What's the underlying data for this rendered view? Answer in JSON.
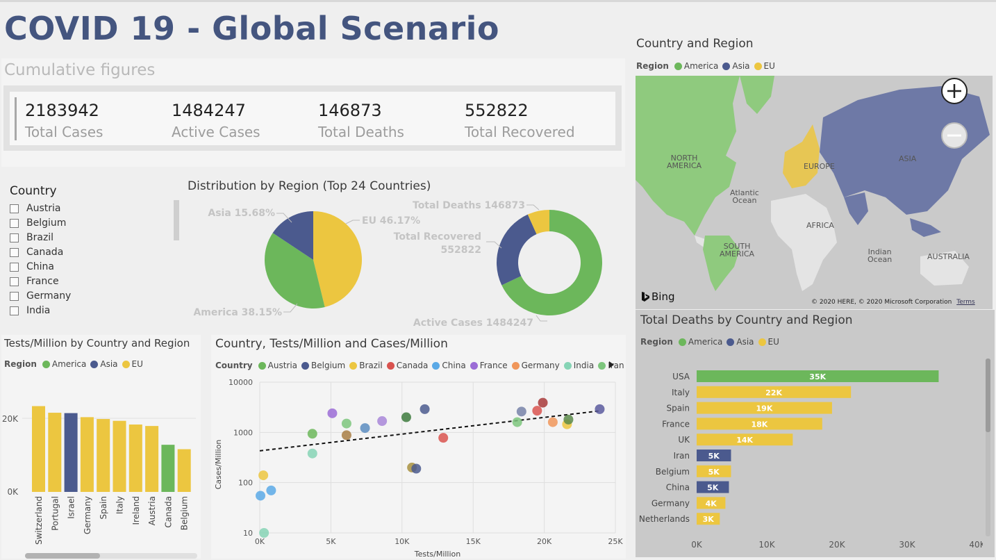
{
  "title": "COVID 19 - Global Scenario",
  "cumulative": {
    "title": "Cumulative figures",
    "kpis": [
      {
        "value": "2183942",
        "label": "Total Cases"
      },
      {
        "value": "1484247",
        "label": "Active Cases"
      },
      {
        "value": "146873",
        "label": "Total Deaths"
      },
      {
        "value": "552822",
        "label": "Total Recovered"
      }
    ]
  },
  "colors": {
    "america": "#6cb75b",
    "asia": "#4b5a8e",
    "eu": "#ecc640"
  },
  "slicer": {
    "title": "Country",
    "items": [
      "Austria",
      "Belgium",
      "Brazil",
      "Canada",
      "China",
      "France",
      "Germany",
      "India"
    ]
  },
  "region_pie": {
    "title": "Distribution by Region (Top 24 Countries)",
    "slices": [
      {
        "label": "EU 46.17%",
        "region": "EU",
        "value": 46.17
      },
      {
        "label": "America 38.15%",
        "region": "America",
        "value": 38.15
      },
      {
        "label": "Asia 15.68%",
        "region": "Asia",
        "value": 15.68
      }
    ]
  },
  "cases_donut": {
    "slices": [
      {
        "label": "Active Cases 1484247",
        "value": 1484247
      },
      {
        "label_l1": "Total Recovered",
        "label_l2": "552822",
        "value": 552822
      },
      {
        "label": "Total Deaths 146873",
        "value": 146873
      }
    ]
  },
  "map": {
    "title": "Country and Region",
    "legend": {
      "title": "Region",
      "items": [
        "America",
        "Asia",
        "EU"
      ]
    },
    "labels": {
      "north_america_1": "NORTH",
      "north_america_2": "AMERICA",
      "europe": "EUROPE",
      "asia": "ASIA",
      "atlantic_1": "Atlantic",
      "atlantic_2": "Ocean",
      "africa": "AFRICA",
      "south_america_1": "SOUTH",
      "south_america_2": "AMERICA",
      "indian_1": "Indian",
      "indian_2": "Ocean",
      "australia": "AUSTRALIA"
    },
    "bing": "Bing",
    "copyright": "© 2020 HERE, © 2020 Microsoft Corporation",
    "terms": "Terms",
    "zoom_in": "+",
    "zoom_out": "−"
  },
  "deaths_chart": {
    "title": "Total Deaths by Country and Region",
    "legend": {
      "title": "Region",
      "items": [
        "America",
        "Asia",
        "EU"
      ]
    },
    "x_ticks": [
      "0K",
      "10K",
      "20K",
      "30K",
      "40K"
    ],
    "bars": [
      {
        "country": "USA",
        "region": "America",
        "value": 34.5,
        "label": "35K"
      },
      {
        "country": "Italy",
        "region": "EU",
        "value": 22.0,
        "label": "22K"
      },
      {
        "country": "Spain",
        "region": "EU",
        "value": 19.3,
        "label": "19K"
      },
      {
        "country": "France",
        "region": "EU",
        "value": 17.9,
        "label": "18K"
      },
      {
        "country": "UK",
        "region": "EU",
        "value": 13.7,
        "label": "14K"
      },
      {
        "country": "Iran",
        "region": "Asia",
        "value": 4.9,
        "label": "5K"
      },
      {
        "country": "Belgium",
        "region": "EU",
        "value": 4.9,
        "label": "5K"
      },
      {
        "country": "China",
        "region": "Asia",
        "value": 4.6,
        "label": "5K"
      },
      {
        "country": "Germany",
        "region": "EU",
        "value": 4.1,
        "label": "4K"
      },
      {
        "country": "Netherlands",
        "region": "EU",
        "value": 3.3,
        "label": "3K"
      }
    ]
  },
  "tests_chart": {
    "title": "Tests/Million by Country and Region",
    "legend": {
      "title": "Region",
      "items": [
        "America",
        "Asia",
        "EU"
      ]
    },
    "y_ticks": [
      "20K",
      "0K"
    ],
    "bars": [
      {
        "country": "Switzerland",
        "region": "EU",
        "value": 23.3
      },
      {
        "country": "Portugal",
        "region": "EU",
        "value": 21.5
      },
      {
        "country": "Israel",
        "region": "Asia",
        "value": 21.4
      },
      {
        "country": "Germany",
        "region": "EU",
        "value": 20.3
      },
      {
        "country": "Spain",
        "region": "EU",
        "value": 19.8
      },
      {
        "country": "Italy",
        "region": "EU",
        "value": 19.3
      },
      {
        "country": "Ireland",
        "region": "EU",
        "value": 18.3
      },
      {
        "country": "Austria",
        "region": "EU",
        "value": 17.9
      },
      {
        "country": "Canada",
        "region": "America",
        "value": 12.8
      },
      {
        "country": "Belgium",
        "region": "EU",
        "value": 11.6
      }
    ]
  },
  "scatter": {
    "title": "Country, Tests/Million and Cases/Million",
    "legend": {
      "title": "Country",
      "items": [
        {
          "name": "Austria",
          "color": "#6cb75b"
        },
        {
          "name": "Belgium",
          "color": "#4b5a8e"
        },
        {
          "name": "Brazil",
          "color": "#ecc640"
        },
        {
          "name": "Canada",
          "color": "#d9534f"
        },
        {
          "name": "China",
          "color": "#5aa9e6"
        },
        {
          "name": "France",
          "color": "#9b6cd6"
        },
        {
          "name": "Germany",
          "color": "#f0965a"
        },
        {
          "name": "India",
          "color": "#86d4b5"
        },
        {
          "name": "Iran",
          "color": "#7dc67d"
        }
      ]
    },
    "xlabel": "Tests/Million",
    "ylabel": "Cases/Million",
    "x_ticks": [
      "0K",
      "5K",
      "10K",
      "15K",
      "20K",
      "25K"
    ],
    "y_ticks": [
      "10000",
      "1000",
      "100",
      "10"
    ]
  },
  "chart_data": [
    {
      "type": "bar",
      "title": "Total Deaths by Country and Region",
      "orientation": "horizontal",
      "categories": [
        "USA",
        "Italy",
        "Spain",
        "France",
        "UK",
        "Iran",
        "Belgium",
        "China",
        "Germany",
        "Netherlands"
      ],
      "values": [
        34500,
        22000,
        19300,
        17900,
        13700,
        4900,
        4900,
        4600,
        4100,
        3300
      ],
      "data_labels": [
        "35K",
        "22K",
        "19K",
        "18K",
        "14K",
        "5K",
        "5K",
        "5K",
        "4K",
        "3K"
      ],
      "xlim": [
        0,
        40000
      ]
    },
    {
      "type": "bar",
      "title": "Tests/Million by Country and Region",
      "categories": [
        "Switzerland",
        "Portugal",
        "Israel",
        "Germany",
        "Spain",
        "Italy",
        "Ireland",
        "Austria",
        "Canada",
        "Belgium"
      ],
      "values": [
        23300,
        21500,
        21400,
        20300,
        19800,
        19300,
        18300,
        17900,
        12800,
        11600
      ]
    },
    {
      "type": "pie",
      "title": "Distribution by Region (Top 24 Countries)",
      "categories": [
        "EU",
        "America",
        "Asia"
      ],
      "values": [
        46.17,
        38.15,
        15.68
      ]
    },
    {
      "type": "pie",
      "categories": [
        "Active Cases",
        "Total Recovered",
        "Total Deaths"
      ],
      "values": [
        1484247,
        552822,
        146873
      ]
    },
    {
      "type": "scatter",
      "title": "Country, Tests/Million and Cases/Million",
      "xlabel": "Tests/Million",
      "ylabel": "Cases/Million",
      "xlim": [
        0,
        25000
      ],
      "ylim": [
        10,
        10000
      ],
      "y_scale": "log",
      "points": [
        {
          "x": 50,
          "y": 55,
          "color": "#5aa9e6"
        },
        {
          "x": 300,
          "y": 10,
          "color": "#86d4b5"
        },
        {
          "x": 250,
          "y": 140,
          "color": "#ecc640"
        },
        {
          "x": 800,
          "y": 70,
          "color": "#5aa9e6"
        },
        {
          "x": 3700,
          "y": 380,
          "color": "#86d4b5"
        },
        {
          "x": 3700,
          "y": 940,
          "color": "#6cb75b"
        },
        {
          "x": 5100,
          "y": 2400,
          "color": "#9b6cd6"
        },
        {
          "x": 6100,
          "y": 1500,
          "color": "#7dc67d"
        },
        {
          "x": 6100,
          "y": 880,
          "color": "#a87e44"
        },
        {
          "x": 7400,
          "y": 1220,
          "color": "#5a8cc0"
        },
        {
          "x": 8600,
          "y": 1680,
          "color": "#a886d8"
        },
        {
          "x": 10300,
          "y": 2000,
          "color": "#3d7a3d"
        },
        {
          "x": 10700,
          "y": 200,
          "color": "#a89040"
        },
        {
          "x": 11000,
          "y": 190,
          "color": "#4b5a8e"
        },
        {
          "x": 11600,
          "y": 2900,
          "color": "#4b5a8e"
        },
        {
          "x": 12900,
          "y": 780,
          "color": "#d9534f"
        },
        {
          "x": 18100,
          "y": 1600,
          "color": "#7dc67d"
        },
        {
          "x": 18400,
          "y": 2600,
          "color": "#7782a8"
        },
        {
          "x": 19500,
          "y": 2700,
          "color": "#d9534f"
        },
        {
          "x": 19900,
          "y": 3900,
          "color": "#a83a3a"
        },
        {
          "x": 20600,
          "y": 1600,
          "color": "#f0965a"
        },
        {
          "x": 21600,
          "y": 1450,
          "color": "#ecc640"
        },
        {
          "x": 21700,
          "y": 1800,
          "color": "#5a8a4a"
        },
        {
          "x": 23900,
          "y": 2900,
          "color": "#5a5a9e"
        }
      ],
      "trendline": {
        "x": [
          0,
          24000
        ],
        "y": [
          430,
          2700
        ]
      }
    }
  ]
}
